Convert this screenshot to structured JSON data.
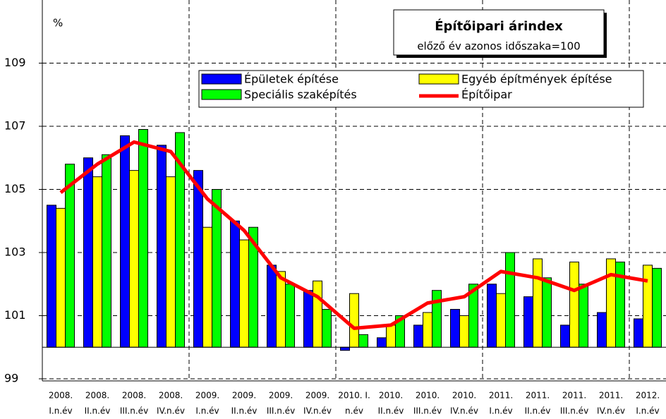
{
  "chart_data": {
    "type": "bar",
    "title": "Építőipari árindex",
    "subtitle": "előző év azonos időszaka=100",
    "y_label": "%",
    "categories": [
      [
        "2008.",
        "I.n.év"
      ],
      [
        "2008.",
        "II.n.év"
      ],
      [
        "2008.",
        "III.n.év"
      ],
      [
        "2008.",
        "IV.n.év"
      ],
      [
        "2009.",
        "I.n.év"
      ],
      [
        "2009.",
        "II.n.év"
      ],
      [
        "2009.",
        "III.n.év"
      ],
      [
        "2009.",
        "IV.n.év"
      ],
      [
        "2010. I.",
        "n.év"
      ],
      [
        "2010.",
        "II.n.év"
      ],
      [
        "2010.",
        "III.n.év"
      ],
      [
        "2010.",
        "IV.n.év"
      ],
      [
        "2011.",
        "I.n.év"
      ],
      [
        "2011.",
        "II.n.év"
      ],
      [
        "2011.",
        "III.n.év"
      ],
      [
        "2011.",
        "IV.n.év"
      ],
      [
        "2012.",
        "I.n.év"
      ]
    ],
    "series": [
      {
        "name": "Épületek építése",
        "type": "bar",
        "color": "#0000ff",
        "values": [
          104.5,
          106.0,
          106.7,
          106.4,
          105.6,
          104.0,
          102.6,
          101.8,
          99.9,
          100.3,
          100.7,
          101.2,
          102.0,
          101.6,
          100.7,
          101.1,
          100.9
        ]
      },
      {
        "name": "Egyéb építmények építése",
        "type": "bar",
        "color": "#ffff00",
        "values": [
          104.4,
          105.4,
          105.6,
          105.4,
          103.8,
          103.4,
          102.4,
          102.1,
          101.7,
          100.7,
          101.1,
          101.0,
          101.7,
          102.8,
          102.7,
          102.8,
          102.6
        ]
      },
      {
        "name": "Speciális szaképítés",
        "type": "bar",
        "color": "#00ff00",
        "values": [
          105.8,
          106.1,
          106.9,
          106.8,
          105.0,
          103.8,
          102.0,
          101.2,
          100.4,
          101.0,
          101.8,
          102.0,
          103.0,
          102.2,
          102.0,
          102.7,
          102.5
        ]
      },
      {
        "name": "Építőipar",
        "type": "line",
        "color": "#ff0000",
        "values": [
          104.9,
          105.8,
          106.5,
          106.2,
          104.7,
          103.7,
          102.2,
          101.6,
          100.6,
          100.7,
          101.4,
          101.6,
          102.4,
          102.2,
          101.8,
          102.3,
          102.1
        ]
      }
    ],
    "baseline": 100,
    "ylim": [
      99,
      111
    ],
    "yticks": [
      99,
      101,
      103,
      105,
      107,
      109
    ],
    "grid": true
  }
}
